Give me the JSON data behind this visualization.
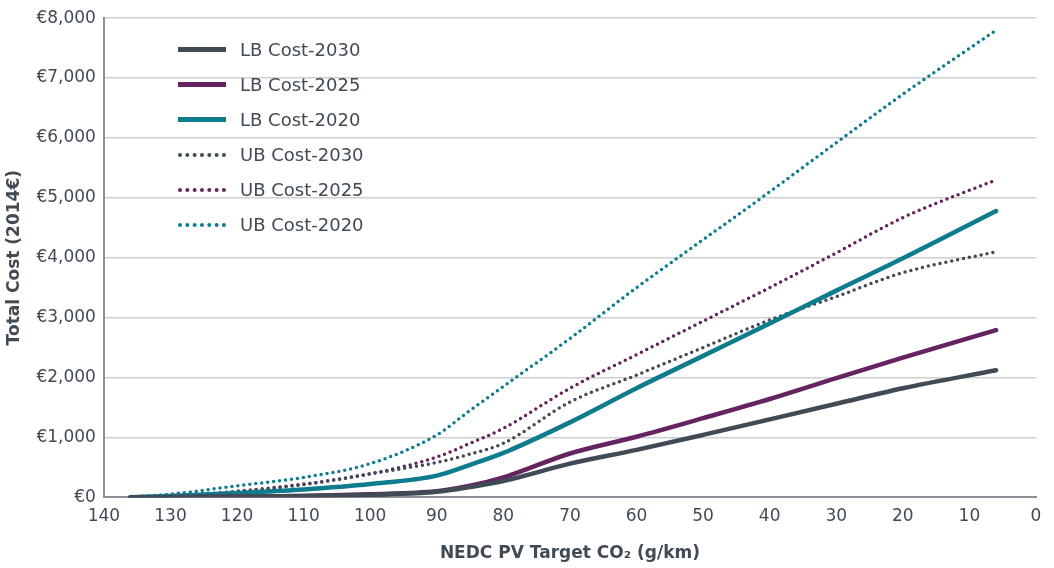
{
  "chart_data": {
    "type": "line",
    "xlabel": "NEDC PV Target CO₂ (g/km)",
    "ylabel": "Total Cost (2014€)",
    "x": [
      136,
      130,
      120,
      110,
      100,
      90,
      85,
      80,
      70,
      60,
      50,
      40,
      30,
      20,
      6
    ],
    "xlim": [
      140,
      0
    ],
    "xticks": [
      140,
      130,
      120,
      110,
      100,
      90,
      80,
      70,
      60,
      50,
      40,
      30,
      20,
      10,
      0
    ],
    "ylim": [
      0,
      8000
    ],
    "yticks": [
      {
        "value": 0,
        "label": "€0"
      },
      {
        "value": 1000,
        "label": "€1,000"
      },
      {
        "value": 2000,
        "label": "€2,000"
      },
      {
        "value": 3000,
        "label": "€3,000"
      },
      {
        "value": 4000,
        "label": "€4,000"
      },
      {
        "value": 5000,
        "label": "€5,000"
      },
      {
        "value": 6000,
        "label": "€6,000"
      },
      {
        "value": 7000,
        "label": "€7,000"
      },
      {
        "value": 8000,
        "label": "€8,000"
      }
    ],
    "grid": "y",
    "legend": "top left",
    "marker": "none",
    "series": [
      {
        "name": "LB Cost-2030",
        "color": "#414b55",
        "line_style": "solid",
        "values": [
          0,
          0,
          10,
          20,
          40,
          90,
          170,
          270,
          560,
          790,
          1040,
          1300,
          1560,
          1820,
          2120
        ]
      },
      {
        "name": "LB Cost-2025",
        "color": "#65235f",
        "line_style": "solid",
        "values": [
          0,
          0,
          10,
          20,
          50,
          100,
          190,
          330,
          730,
          1010,
          1320,
          1640,
          1990,
          2330,
          2790
        ]
      },
      {
        "name": "LB Cost-2020",
        "color": "#0e7c8e",
        "line_style": "solid",
        "values": [
          0,
          20,
          70,
          130,
          220,
          360,
          540,
          740,
          1250,
          1820,
          2360,
          2900,
          3450,
          3990,
          4780
        ]
      },
      {
        "name": "UB Cost-2030",
        "color": "#414b55",
        "line_style": "dotted",
        "values": [
          0,
          20,
          90,
          210,
          390,
          580,
          720,
          900,
          1590,
          2040,
          2500,
          2960,
          3350,
          3750,
          4100
        ]
      },
      {
        "name": "UB Cost-2025",
        "color": "#65235f",
        "line_style": "dotted",
        "values": [
          0,
          20,
          100,
          220,
          390,
          670,
          900,
          1150,
          1820,
          2380,
          2940,
          3500,
          4080,
          4670,
          5300
        ]
      },
      {
        "name": "UB Cost-2020",
        "color": "#0e7c8e",
        "line_style": "dotted",
        "values": [
          0,
          50,
          190,
          330,
          560,
          1040,
          1450,
          1850,
          2650,
          3500,
          4300,
          5100,
          5920,
          6730,
          7800
        ]
      }
    ]
  }
}
